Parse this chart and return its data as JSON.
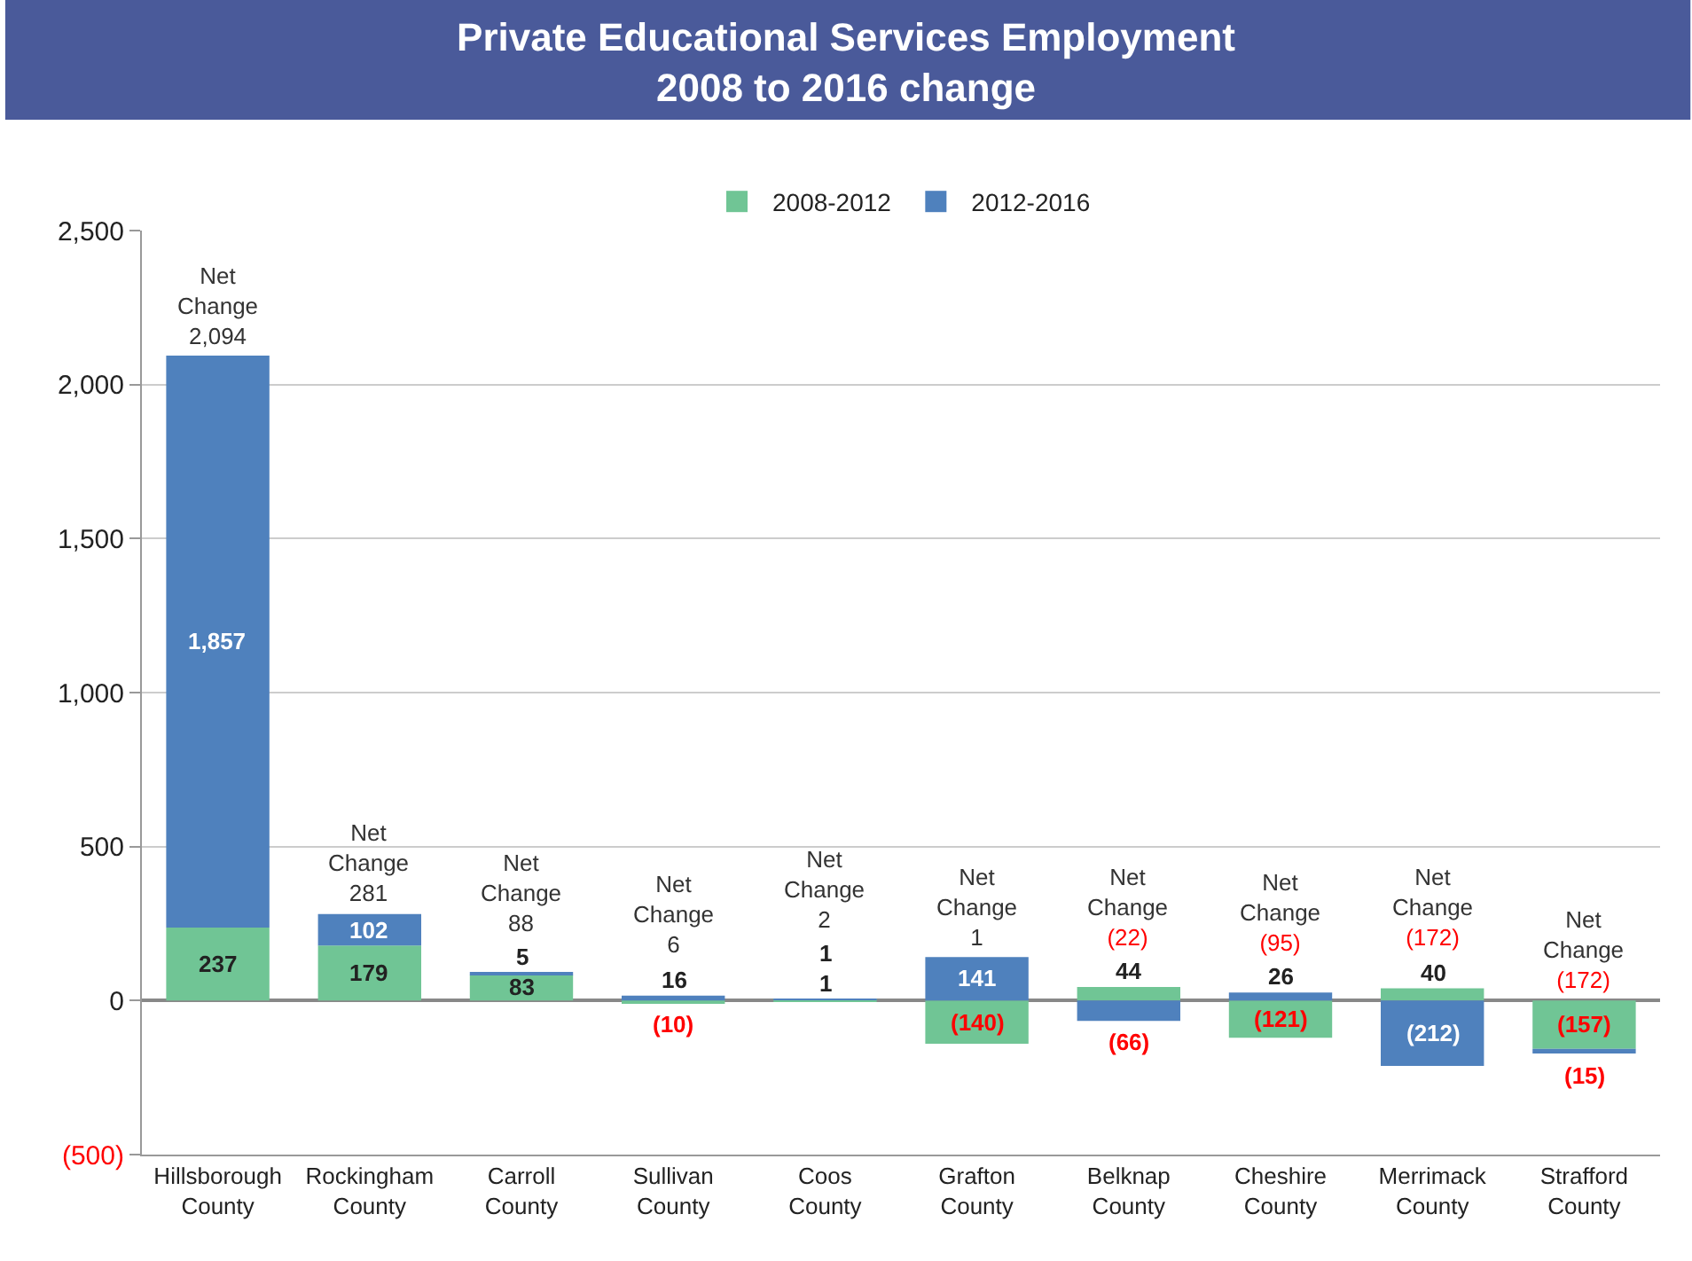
{
  "chart_data": {
    "type": "bar",
    "stacked": true,
    "title": "Private Educational Services Employment\n2008 to 2016 change",
    "categories": [
      "Hillsborough County",
      "Rockingham County",
      "Carroll County",
      "Sullivan County",
      "Coos County",
      "Grafton County",
      "Belknap County",
      "Cheshire County",
      "Merrimack County",
      "Strafford County"
    ],
    "series": [
      {
        "name": "2008-2012",
        "color": "#70c595",
        "values": [
          237,
          179,
          83,
          -10,
          1,
          -140,
          44,
          -121,
          40,
          -157
        ],
        "value_labels": [
          "237",
          "179",
          "83",
          "(10)",
          "1",
          "(140)",
          "44",
          "(121)",
          "40",
          "(157)"
        ]
      },
      {
        "name": "2012-2016",
        "color": "#4f81bd",
        "values": [
          1857,
          102,
          5,
          16,
          1,
          141,
          -66,
          26,
          -212,
          -15
        ],
        "value_labels": [
          "1,857",
          "102",
          "5",
          "16",
          "1",
          "141",
          "(66)",
          "26",
          "(212)",
          "(15)"
        ]
      }
    ],
    "totals": [
      "Net Change\n2,094",
      "Net Change\n281",
      "Net Change\n88",
      "Net Change\n6",
      "Net Change\n2",
      "Net Change\n1",
      "Net Change\n(22)",
      "Net Change\n(95)",
      "Net Change\n(172)",
      "Net Change\n(172)"
    ],
    "ylim": [
      -500,
      2500
    ],
    "yticks": [
      {
        "value": -500,
        "label": "(500)"
      },
      0,
      500,
      {
        "value": 1000,
        "label": "1,000"
      },
      {
        "value": 1500,
        "label": "1,500"
      },
      {
        "value": 2000,
        "label": "2,000"
      },
      {
        "value": 2500,
        "label": "2,500"
      }
    ],
    "grid": "y",
    "legend": "top"
  }
}
